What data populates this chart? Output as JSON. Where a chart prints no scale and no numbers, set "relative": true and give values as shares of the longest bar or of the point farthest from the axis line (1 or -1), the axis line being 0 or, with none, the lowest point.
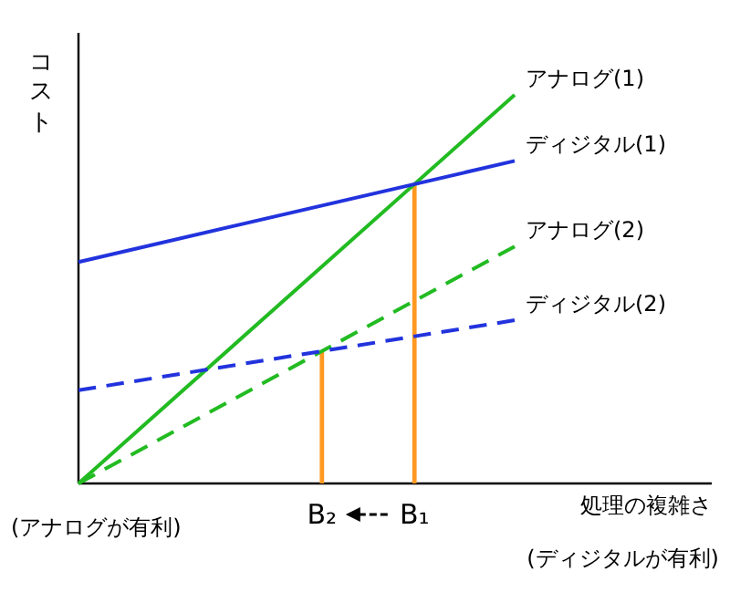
{
  "chart_data": {
    "type": "line",
    "relative": true,
    "ylabel": "コスト",
    "xlabel": "処理の複雑さ",
    "categories": [
      null,
      null
    ],
    "series": [
      {
        "name": "アナログ(1)",
        "color": "#22bb22",
        "values": [
          0,
          1
        ]
      },
      {
        "name": "ディジタル(1)",
        "color": "#2233dd",
        "values": [
          0.57,
          0.83
        ]
      },
      {
        "name": "アナログ(2)",
        "color": "#22bb22",
        "values": [
          0,
          0.61
        ],
        "line_style": "dashed"
      },
      {
        "name": "ディジタル(2)",
        "color": "#2233dd",
        "values": [
          0.24,
          0.42
        ],
        "line_style": "dashed"
      }
    ],
    "annotations": [
      "B₂",
      "B₁",
      "(アナログが有利)",
      "(ディジタルが有利)"
    ]
  }
}
